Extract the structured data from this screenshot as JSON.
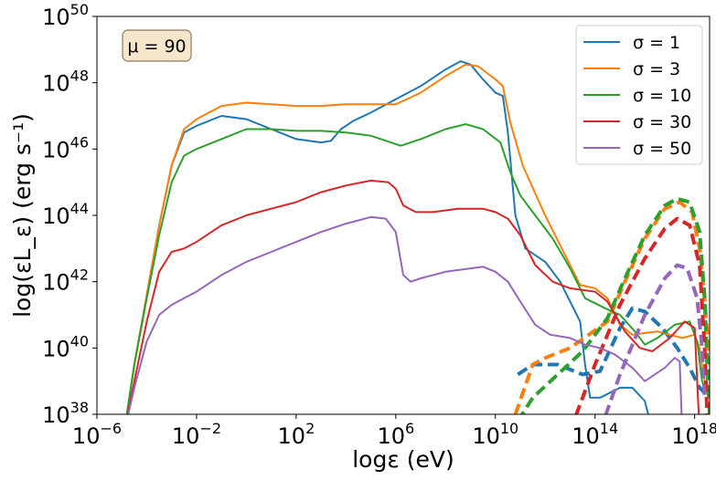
{
  "chart_data": {
    "type": "line",
    "title": "",
    "xlabel": "logε (eV)",
    "ylabel": "log(εL_ε) (erg s⁻¹)",
    "x_scale": "log",
    "y_scale": "log",
    "xlim_exp": [
      -6,
      18.6
    ],
    "ylim_exp": [
      38,
      50
    ],
    "x_ticks": [
      {
        "base": "10",
        "exp": "−6",
        "value": -6
      },
      {
        "base": "10",
        "exp": "−2",
        "value": -2
      },
      {
        "base": "10",
        "exp": "2",
        "value": 2
      },
      {
        "base": "10",
        "exp": "6",
        "value": 6
      },
      {
        "base": "10",
        "exp": "10",
        "value": 10
      },
      {
        "base": "10",
        "exp": "14",
        "value": 14
      },
      {
        "base": "10",
        "exp": "18",
        "value": 18
      }
    ],
    "y_ticks": [
      {
        "base": "10",
        "exp": "38",
        "value": 38
      },
      {
        "base": "10",
        "exp": "40",
        "value": 40
      },
      {
        "base": "10",
        "exp": "42",
        "value": 42
      },
      {
        "base": "10",
        "exp": "44",
        "value": 44
      },
      {
        "base": "10",
        "exp": "46",
        "value": 46
      },
      {
        "base": "10",
        "exp": "48",
        "value": 48
      },
      {
        "base": "10",
        "exp": "50",
        "value": 50
      }
    ],
    "grid": false,
    "legend_position": "top-right",
    "annotation": {
      "text": "μ = 90",
      "position": "top-left"
    },
    "series": [
      {
        "name": "σ = 1",
        "color": "#1f77b4",
        "solid": [
          [
            -4.9,
            37.5
          ],
          [
            -4.5,
            39.5
          ],
          [
            -4,
            41.6
          ],
          [
            -3.5,
            43.7
          ],
          [
            -3,
            45.5
          ],
          [
            -2.5,
            46.5
          ],
          [
            -2,
            46.7
          ],
          [
            -1,
            47.0
          ],
          [
            0,
            46.9
          ],
          [
            1,
            46.6
          ],
          [
            2,
            46.3
          ],
          [
            3,
            46.2
          ],
          [
            3.4,
            46.25
          ],
          [
            3.8,
            46.6
          ],
          [
            4.3,
            46.85
          ],
          [
            5,
            47.1
          ],
          [
            6,
            47.5
          ],
          [
            7,
            47.9
          ],
          [
            8,
            48.4
          ],
          [
            8.6,
            48.65
          ],
          [
            9,
            48.55
          ],
          [
            9.5,
            48.1
          ],
          [
            10,
            47.7
          ],
          [
            10.3,
            47.6
          ],
          [
            10.5,
            46.5
          ],
          [
            10.8,
            44.0
          ],
          [
            11.2,
            43.0
          ],
          [
            12,
            42.6
          ],
          [
            12.6,
            42.0
          ],
          [
            13,
            41.4
          ],
          [
            13.4,
            40.8
          ],
          [
            13.6,
            39.5
          ],
          [
            13.8,
            38.5
          ],
          [
            14.2,
            38.5
          ],
          [
            15,
            38.8
          ],
          [
            15.5,
            38.8
          ],
          [
            16,
            38.4
          ],
          [
            16.3,
            37.5
          ]
        ],
        "dashed": [
          [
            10.9,
            39.2
          ],
          [
            11.5,
            39.5
          ],
          [
            12.5,
            39.5
          ],
          [
            13.5,
            39.2
          ],
          [
            14.2,
            39.3
          ],
          [
            15,
            40.6
          ],
          [
            15.5,
            41.2
          ],
          [
            16,
            41.1
          ],
          [
            16.7,
            40.6
          ],
          [
            17.3,
            40.0
          ],
          [
            17.8,
            39.4
          ],
          [
            18.2,
            38.8
          ],
          [
            18.6,
            38.5
          ]
        ]
      },
      {
        "name": "σ = 3",
        "color": "#ff7f0e",
        "solid": [
          [
            -4.9,
            37.5
          ],
          [
            -4.5,
            39.5
          ],
          [
            -4,
            41.6
          ],
          [
            -3.5,
            43.7
          ],
          [
            -3,
            45.5
          ],
          [
            -2.5,
            46.6
          ],
          [
            -2,
            46.9
          ],
          [
            -1,
            47.3
          ],
          [
            0,
            47.4
          ],
          [
            1,
            47.35
          ],
          [
            2,
            47.3
          ],
          [
            3,
            47.3
          ],
          [
            4,
            47.35
          ],
          [
            5,
            47.35
          ],
          [
            6,
            47.35
          ],
          [
            7,
            47.7
          ],
          [
            8,
            48.2
          ],
          [
            8.8,
            48.55
          ],
          [
            9.3,
            48.5
          ],
          [
            10,
            48.1
          ],
          [
            10.3,
            47.9
          ],
          [
            10.6,
            46.8
          ],
          [
            11.1,
            45.5
          ],
          [
            12,
            44.0
          ],
          [
            12.8,
            42.8
          ],
          [
            13.4,
            41.9
          ],
          [
            14,
            41.8
          ],
          [
            14.5,
            41.5
          ],
          [
            15,
            40.7
          ],
          [
            15.5,
            40.4
          ],
          [
            16.5,
            40.5
          ],
          [
            17.5,
            40.3
          ],
          [
            18,
            40.4
          ],
          [
            18.2,
            40.0
          ],
          [
            18.4,
            39.0
          ],
          [
            18.6,
            38.8
          ]
        ],
        "dashed": [
          [
            10.8,
            38.0
          ],
          [
            11.5,
            39.5
          ],
          [
            12,
            39.7
          ],
          [
            13,
            40.0
          ],
          [
            14.5,
            40.8
          ],
          [
            15.2,
            42.0
          ],
          [
            16,
            43.3
          ],
          [
            16.8,
            44.2
          ],
          [
            17.4,
            44.4
          ],
          [
            17.9,
            44.1
          ],
          [
            18.2,
            43.0
          ],
          [
            18.4,
            41.5
          ],
          [
            18.6,
            39.5
          ]
        ]
      },
      {
        "name": "σ = 10",
        "color": "#2ca02c",
        "solid": [
          [
            -4.9,
            37.5
          ],
          [
            -4.5,
            39.5
          ],
          [
            -4,
            41.5
          ],
          [
            -3.5,
            43.4
          ],
          [
            -3,
            45.0
          ],
          [
            -2.5,
            45.8
          ],
          [
            -2,
            46.0
          ],
          [
            -1,
            46.3
          ],
          [
            0,
            46.6
          ],
          [
            1,
            46.6
          ],
          [
            2,
            46.55
          ],
          [
            3,
            46.55
          ],
          [
            4,
            46.5
          ],
          [
            5,
            46.4
          ],
          [
            5.8,
            46.2
          ],
          [
            6.2,
            46.1
          ],
          [
            7,
            46.3
          ],
          [
            8,
            46.6
          ],
          [
            8.8,
            46.75
          ],
          [
            9.5,
            46.6
          ],
          [
            10.2,
            46.2
          ],
          [
            10.6,
            45.3
          ],
          [
            11,
            44.6
          ],
          [
            11.6,
            44.0
          ],
          [
            12.3,
            43.3
          ],
          [
            13,
            42.4
          ],
          [
            13.6,
            41.5
          ],
          [
            14.4,
            41.2
          ],
          [
            15,
            41.0
          ],
          [
            15.6,
            40.5
          ],
          [
            16,
            40.1
          ],
          [
            16.5,
            40.3
          ],
          [
            17.2,
            40.7
          ],
          [
            17.8,
            40.8
          ],
          [
            18.1,
            40.2
          ],
          [
            18.3,
            39.0
          ],
          [
            18.6,
            38.5
          ]
        ],
        "dashed": [
          [
            10.9,
            37.8
          ],
          [
            11.5,
            38.5
          ],
          [
            12.5,
            39.2
          ],
          [
            13.5,
            39.9
          ],
          [
            14.5,
            40.9
          ],
          [
            15.2,
            42.1
          ],
          [
            16,
            43.4
          ],
          [
            16.8,
            44.3
          ],
          [
            17.3,
            44.5
          ],
          [
            17.8,
            44.4
          ],
          [
            18.2,
            43.5
          ],
          [
            18.4,
            41.5
          ],
          [
            18.5,
            39.5
          ],
          [
            18.6,
            38.0
          ]
        ]
      },
      {
        "name": "σ = 30",
        "color": "#d62728",
        "solid": [
          [
            -4.9,
            37.5
          ],
          [
            -4.5,
            39.0
          ],
          [
            -4,
            40.8
          ],
          [
            -3.5,
            42.3
          ],
          [
            -3,
            42.9
          ],
          [
            -2.5,
            43.0
          ],
          [
            -2,
            43.2
          ],
          [
            -1,
            43.7
          ],
          [
            0,
            44.0
          ],
          [
            1,
            44.2
          ],
          [
            2,
            44.4
          ],
          [
            3,
            44.7
          ],
          [
            4,
            44.9
          ],
          [
            5,
            45.05
          ],
          [
            5.7,
            45.0
          ],
          [
            6,
            44.8
          ],
          [
            6.3,
            44.3
          ],
          [
            6.8,
            44.1
          ],
          [
            7.5,
            44.1
          ],
          [
            8.5,
            44.2
          ],
          [
            9.5,
            44.2
          ],
          [
            10,
            44.1
          ],
          [
            10.5,
            43.9
          ],
          [
            11,
            43.4
          ],
          [
            11.6,
            42.5
          ],
          [
            12.3,
            42.0
          ],
          [
            13,
            41.8
          ],
          [
            14,
            41.7
          ],
          [
            14.5,
            41.4
          ],
          [
            15.2,
            40.5
          ],
          [
            15.8,
            40.0
          ],
          [
            16.3,
            39.9
          ],
          [
            17,
            40.3
          ],
          [
            17.6,
            40.8
          ],
          [
            18,
            40.6
          ],
          [
            18.1,
            39.0
          ],
          [
            18.2,
            37.5
          ]
        ],
        "dashed": [
          [
            13.0,
            37.5
          ],
          [
            14.0,
            39.5
          ],
          [
            15.0,
            41.3
          ],
          [
            16.0,
            42.7
          ],
          [
            16.8,
            43.6
          ],
          [
            17.3,
            43.9
          ],
          [
            17.8,
            43.7
          ],
          [
            18.2,
            42.5
          ],
          [
            18.4,
            40.0
          ],
          [
            18.5,
            38.0
          ]
        ]
      },
      {
        "name": "σ = 50",
        "color": "#9467bd",
        "solid": [
          [
            -4.9,
            37.5
          ],
          [
            -4.5,
            38.8
          ],
          [
            -4,
            40.2
          ],
          [
            -3.5,
            41.0
          ],
          [
            -3,
            41.3
          ],
          [
            -2.5,
            41.5
          ],
          [
            -2,
            41.7
          ],
          [
            -1,
            42.2
          ],
          [
            0,
            42.6
          ],
          [
            1,
            42.9
          ],
          [
            2,
            43.2
          ],
          [
            3,
            43.5
          ],
          [
            4,
            43.75
          ],
          [
            5,
            43.95
          ],
          [
            5.6,
            43.9
          ],
          [
            6,
            43.5
          ],
          [
            6.3,
            42.2
          ],
          [
            6.6,
            42.0
          ],
          [
            7,
            42.1
          ],
          [
            8,
            42.3
          ],
          [
            9,
            42.4
          ],
          [
            9.5,
            42.45
          ],
          [
            10,
            42.3
          ],
          [
            10.5,
            42.0
          ],
          [
            11,
            41.4
          ],
          [
            11.6,
            40.7
          ],
          [
            12.2,
            40.4
          ],
          [
            13,
            40.3
          ],
          [
            13.6,
            40.1
          ],
          [
            14.2,
            40.0
          ],
          [
            14.8,
            39.8
          ],
          [
            15.5,
            39.4
          ],
          [
            16,
            39.0
          ],
          [
            16.8,
            39.4
          ],
          [
            17.2,
            39.7
          ],
          [
            17.4,
            39.6
          ],
          [
            17.5,
            37.5
          ]
        ],
        "dashed": [
          [
            14.2,
            37.5
          ],
          [
            15.0,
            39.2
          ],
          [
            16.0,
            41.0
          ],
          [
            16.8,
            42.1
          ],
          [
            17.3,
            42.5
          ],
          [
            17.7,
            42.4
          ],
          [
            18.1,
            41.5
          ],
          [
            18.3,
            40.0
          ],
          [
            18.4,
            38.5
          ]
        ]
      }
    ]
  }
}
